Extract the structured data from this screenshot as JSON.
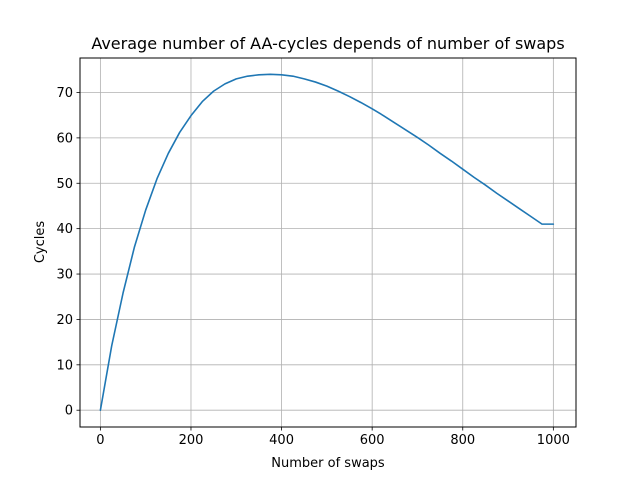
{
  "chart_data": {
    "type": "line",
    "title": "Average number of AA-cycles depends of number of swaps",
    "xlabel": "Number of swaps",
    "ylabel": "Cycles",
    "xlim": [
      -45,
      1050
    ],
    "ylim": [
      -3.7,
      77.6
    ],
    "xticks": [
      0,
      200,
      400,
      600,
      800,
      1000
    ],
    "yticks": [
      0,
      10,
      20,
      30,
      40,
      50,
      60,
      70
    ],
    "grid": true,
    "legend": "none",
    "line_color": "#1f77b4",
    "series": [
      {
        "x": [
          0,
          25,
          50,
          75,
          100,
          125,
          150,
          175,
          200,
          225,
          250,
          275,
          300,
          325,
          350,
          375,
          400,
          425,
          450,
          475,
          500,
          525,
          550,
          575,
          600,
          625,
          650,
          675,
          700,
          725,
          750,
          775,
          800,
          825,
          850,
          875,
          900,
          925,
          950,
          975,
          1000
        ],
        "y": [
          0,
          14.2,
          25.8,
          35.9,
          44.1,
          51.0,
          56.6,
          61.2,
          64.9,
          68.0,
          70.3,
          71.9,
          73.0,
          73.6,
          73.9,
          74.0,
          73.9,
          73.6,
          73.0,
          72.3,
          71.4,
          70.3,
          69.1,
          67.8,
          66.4,
          64.9,
          63.3,
          61.7,
          60.1,
          58.4,
          56.6,
          54.9,
          53.1,
          51.3,
          49.6,
          47.8,
          46.1,
          44.4,
          42.7,
          41.0,
          41.0
        ]
      }
    ]
  }
}
